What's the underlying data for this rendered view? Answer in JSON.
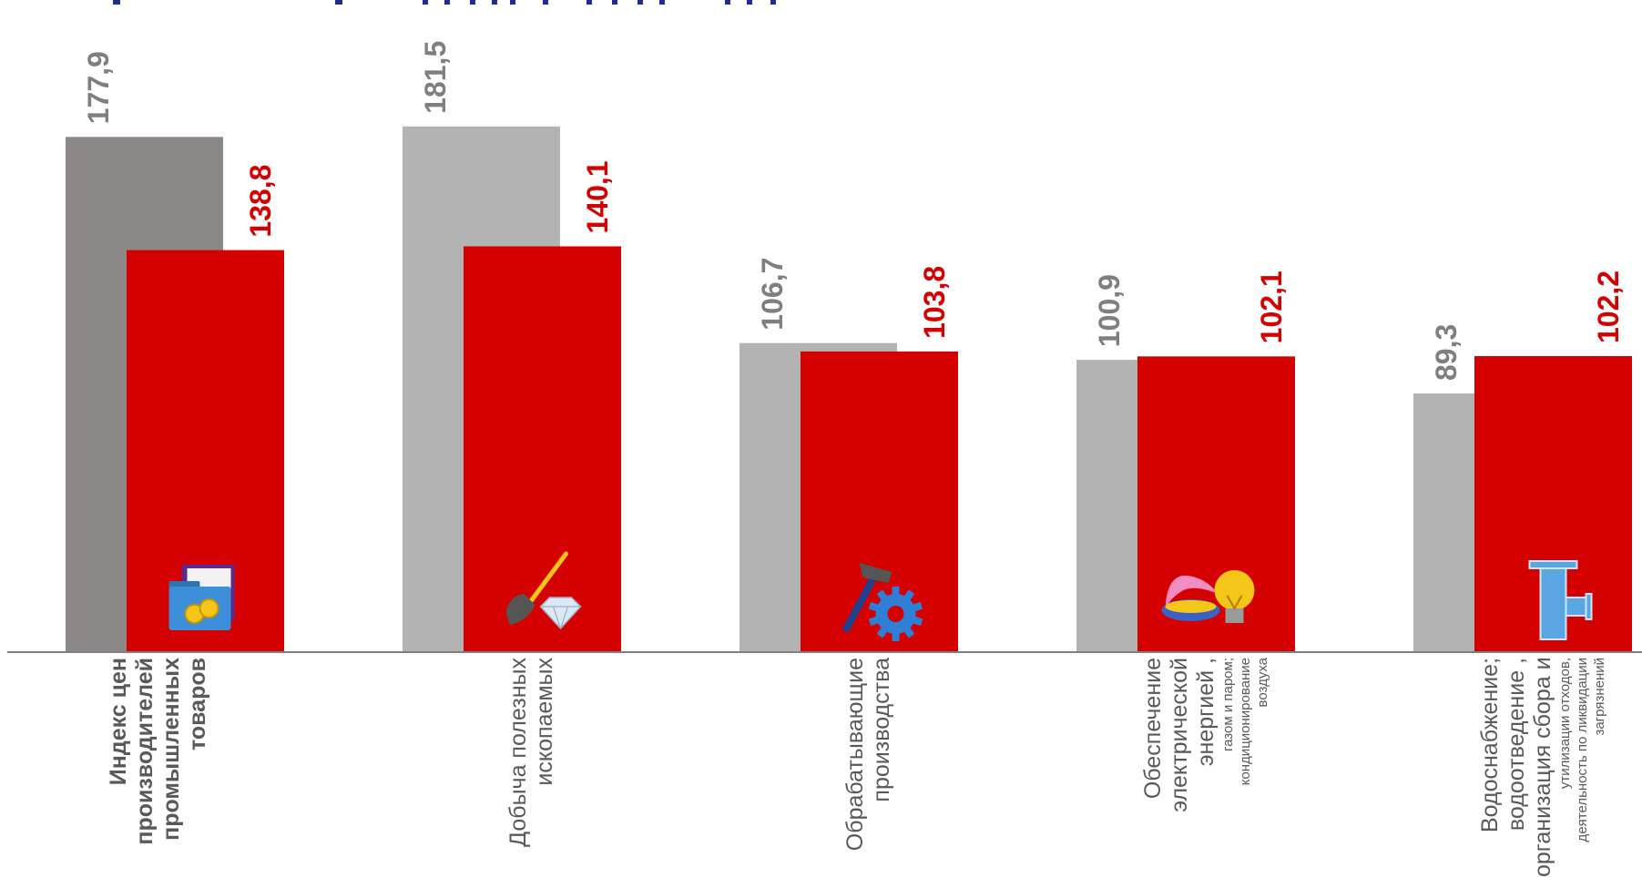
{
  "colors": {
    "series_prev_first": "#8c8887",
    "series_prev": "#b3b3b3",
    "series_current": "#d50000",
    "label_prev": "#7f7f7f",
    "label_current": "#d50000",
    "axis": "#7f7f7f",
    "title_fragment": "#1f2e8e",
    "category_text": "#595959"
  },
  "chart_data": {
    "type": "bar",
    "title": "",
    "xlabel": "",
    "ylabel": "",
    "ylim": [
      0,
      190
    ],
    "grid": false,
    "legend": "none",
    "categories": [
      {
        "lines": [
          "Индекс цен",
          "производителей",
          "промышленных",
          "товаров"
        ],
        "bold": true,
        "icon": "folder-coins-icon"
      },
      {
        "lines": [
          "Добыча полезных",
          "ископаемых"
        ],
        "bold": false,
        "icon": "shovel-diamond-icon"
      },
      {
        "lines": [
          "Обрабатывающие",
          "производства"
        ],
        "bold": false,
        "icon": "hammer-gear-icon"
      },
      {
        "lines": [
          "Обеспечение",
          "электрической",
          "энергией ,",
          "газом и паром;",
          "кондиционирование",
          "воздуха"
        ],
        "bold": false,
        "icon": "gas-flame-lightbulb-icon"
      },
      {
        "lines": [
          "Водоснабжение;",
          "водоотведение ,",
          "организация сбора и",
          "утилизации отходов,",
          "деятельность по ликвидации",
          "загрязнений"
        ],
        "bold": false,
        "icon": "water-pipe-icon"
      }
    ],
    "series": [
      {
        "values": [
          177.9,
          181.5,
          106.7,
          100.9,
          89.3
        ],
        "labels": [
          "177,9",
          "181,5",
          "106,7",
          "100,9",
          "89,3"
        ]
      },
      {
        "values": [
          138.8,
          140.1,
          103.8,
          102.1,
          102.2
        ],
        "labels": [
          "138,8",
          "140,1",
          "103,8",
          "102,1",
          "102,2"
        ]
      }
    ]
  }
}
